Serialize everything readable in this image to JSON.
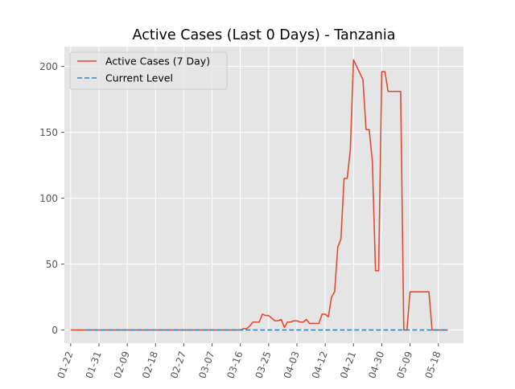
{
  "chart_data": {
    "type": "line",
    "title": "Active Cases (Last 0 Days) - Tanzania",
    "xlabel": "",
    "ylabel": "",
    "x_ticks": [
      "01-22",
      "01-31",
      "02-09",
      "02-18",
      "02-27",
      "03-07",
      "03-16",
      "03-25",
      "04-03",
      "04-12",
      "04-21",
      "04-30",
      "05-09",
      "05-18"
    ],
    "y_ticks": [
      0,
      50,
      100,
      150,
      200
    ],
    "xlim": [
      "01-20",
      "05-26"
    ],
    "ylim": [
      -10,
      215
    ],
    "grid": true,
    "legend_position": "top-left",
    "background": "#e5e5e5",
    "series": [
      {
        "name": "Active Cases (7 Day)",
        "color": "#e24a33",
        "style": "solid",
        "points": [
          [
            "01-22",
            0
          ],
          [
            "01-31",
            0
          ],
          [
            "02-09",
            0
          ],
          [
            "02-18",
            0
          ],
          [
            "02-27",
            0
          ],
          [
            "03-07",
            0
          ],
          [
            "03-16",
            0
          ],
          [
            "03-17",
            1
          ],
          [
            "03-18",
            1
          ],
          [
            "03-19",
            3
          ],
          [
            "03-20",
            6
          ],
          [
            "03-21",
            6
          ],
          [
            "03-22",
            6
          ],
          [
            "03-23",
            12
          ],
          [
            "03-24",
            11
          ],
          [
            "03-25",
            11
          ],
          [
            "03-26",
            9
          ],
          [
            "03-27",
            7
          ],
          [
            "03-28",
            7
          ],
          [
            "03-29",
            8
          ],
          [
            "03-30",
            2
          ],
          [
            "03-31",
            6
          ],
          [
            "04-01",
            6
          ],
          [
            "04-02",
            7
          ],
          [
            "04-03",
            7
          ],
          [
            "04-04",
            6
          ],
          [
            "04-05",
            6
          ],
          [
            "04-06",
            8
          ],
          [
            "04-07",
            5
          ],
          [
            "04-08",
            5
          ],
          [
            "04-09",
            5
          ],
          [
            "04-10",
            5
          ],
          [
            "04-11",
            12
          ],
          [
            "04-12",
            12
          ],
          [
            "04-13",
            10
          ],
          [
            "04-14",
            25
          ],
          [
            "04-15",
            29
          ],
          [
            "04-16",
            63
          ],
          [
            "04-17",
            69
          ],
          [
            "04-18",
            115
          ],
          [
            "04-19",
            115
          ],
          [
            "04-20",
            137
          ],
          [
            "04-21",
            205
          ],
          [
            "04-22",
            200
          ],
          [
            "04-23",
            195
          ],
          [
            "04-24",
            190
          ],
          [
            "04-25",
            152
          ],
          [
            "04-26",
            152
          ],
          [
            "04-27",
            128
          ],
          [
            "04-28",
            45
          ],
          [
            "04-29",
            45
          ],
          [
            "04-30",
            196
          ],
          [
            "05-01",
            196
          ],
          [
            "05-02",
            181
          ],
          [
            "05-03",
            181
          ],
          [
            "05-04",
            181
          ],
          [
            "05-05",
            181
          ],
          [
            "05-06",
            181
          ],
          [
            "05-07",
            0
          ],
          [
            "05-08",
            0
          ],
          [
            "05-09",
            29
          ],
          [
            "05-10",
            29
          ],
          [
            "05-11",
            29
          ],
          [
            "05-12",
            29
          ],
          [
            "05-13",
            29
          ],
          [
            "05-14",
            29
          ],
          [
            "05-15",
            29
          ],
          [
            "05-16",
            0
          ],
          [
            "05-17",
            0
          ],
          [
            "05-18",
            0
          ],
          [
            "05-19",
            0
          ],
          [
            "05-20",
            0
          ],
          [
            "05-21",
            0
          ]
        ]
      },
      {
        "name": "Current Level",
        "color": "#348abd",
        "style": "dashed",
        "points": [
          [
            "01-27",
            0
          ],
          [
            "05-21",
            0
          ]
        ]
      }
    ]
  }
}
